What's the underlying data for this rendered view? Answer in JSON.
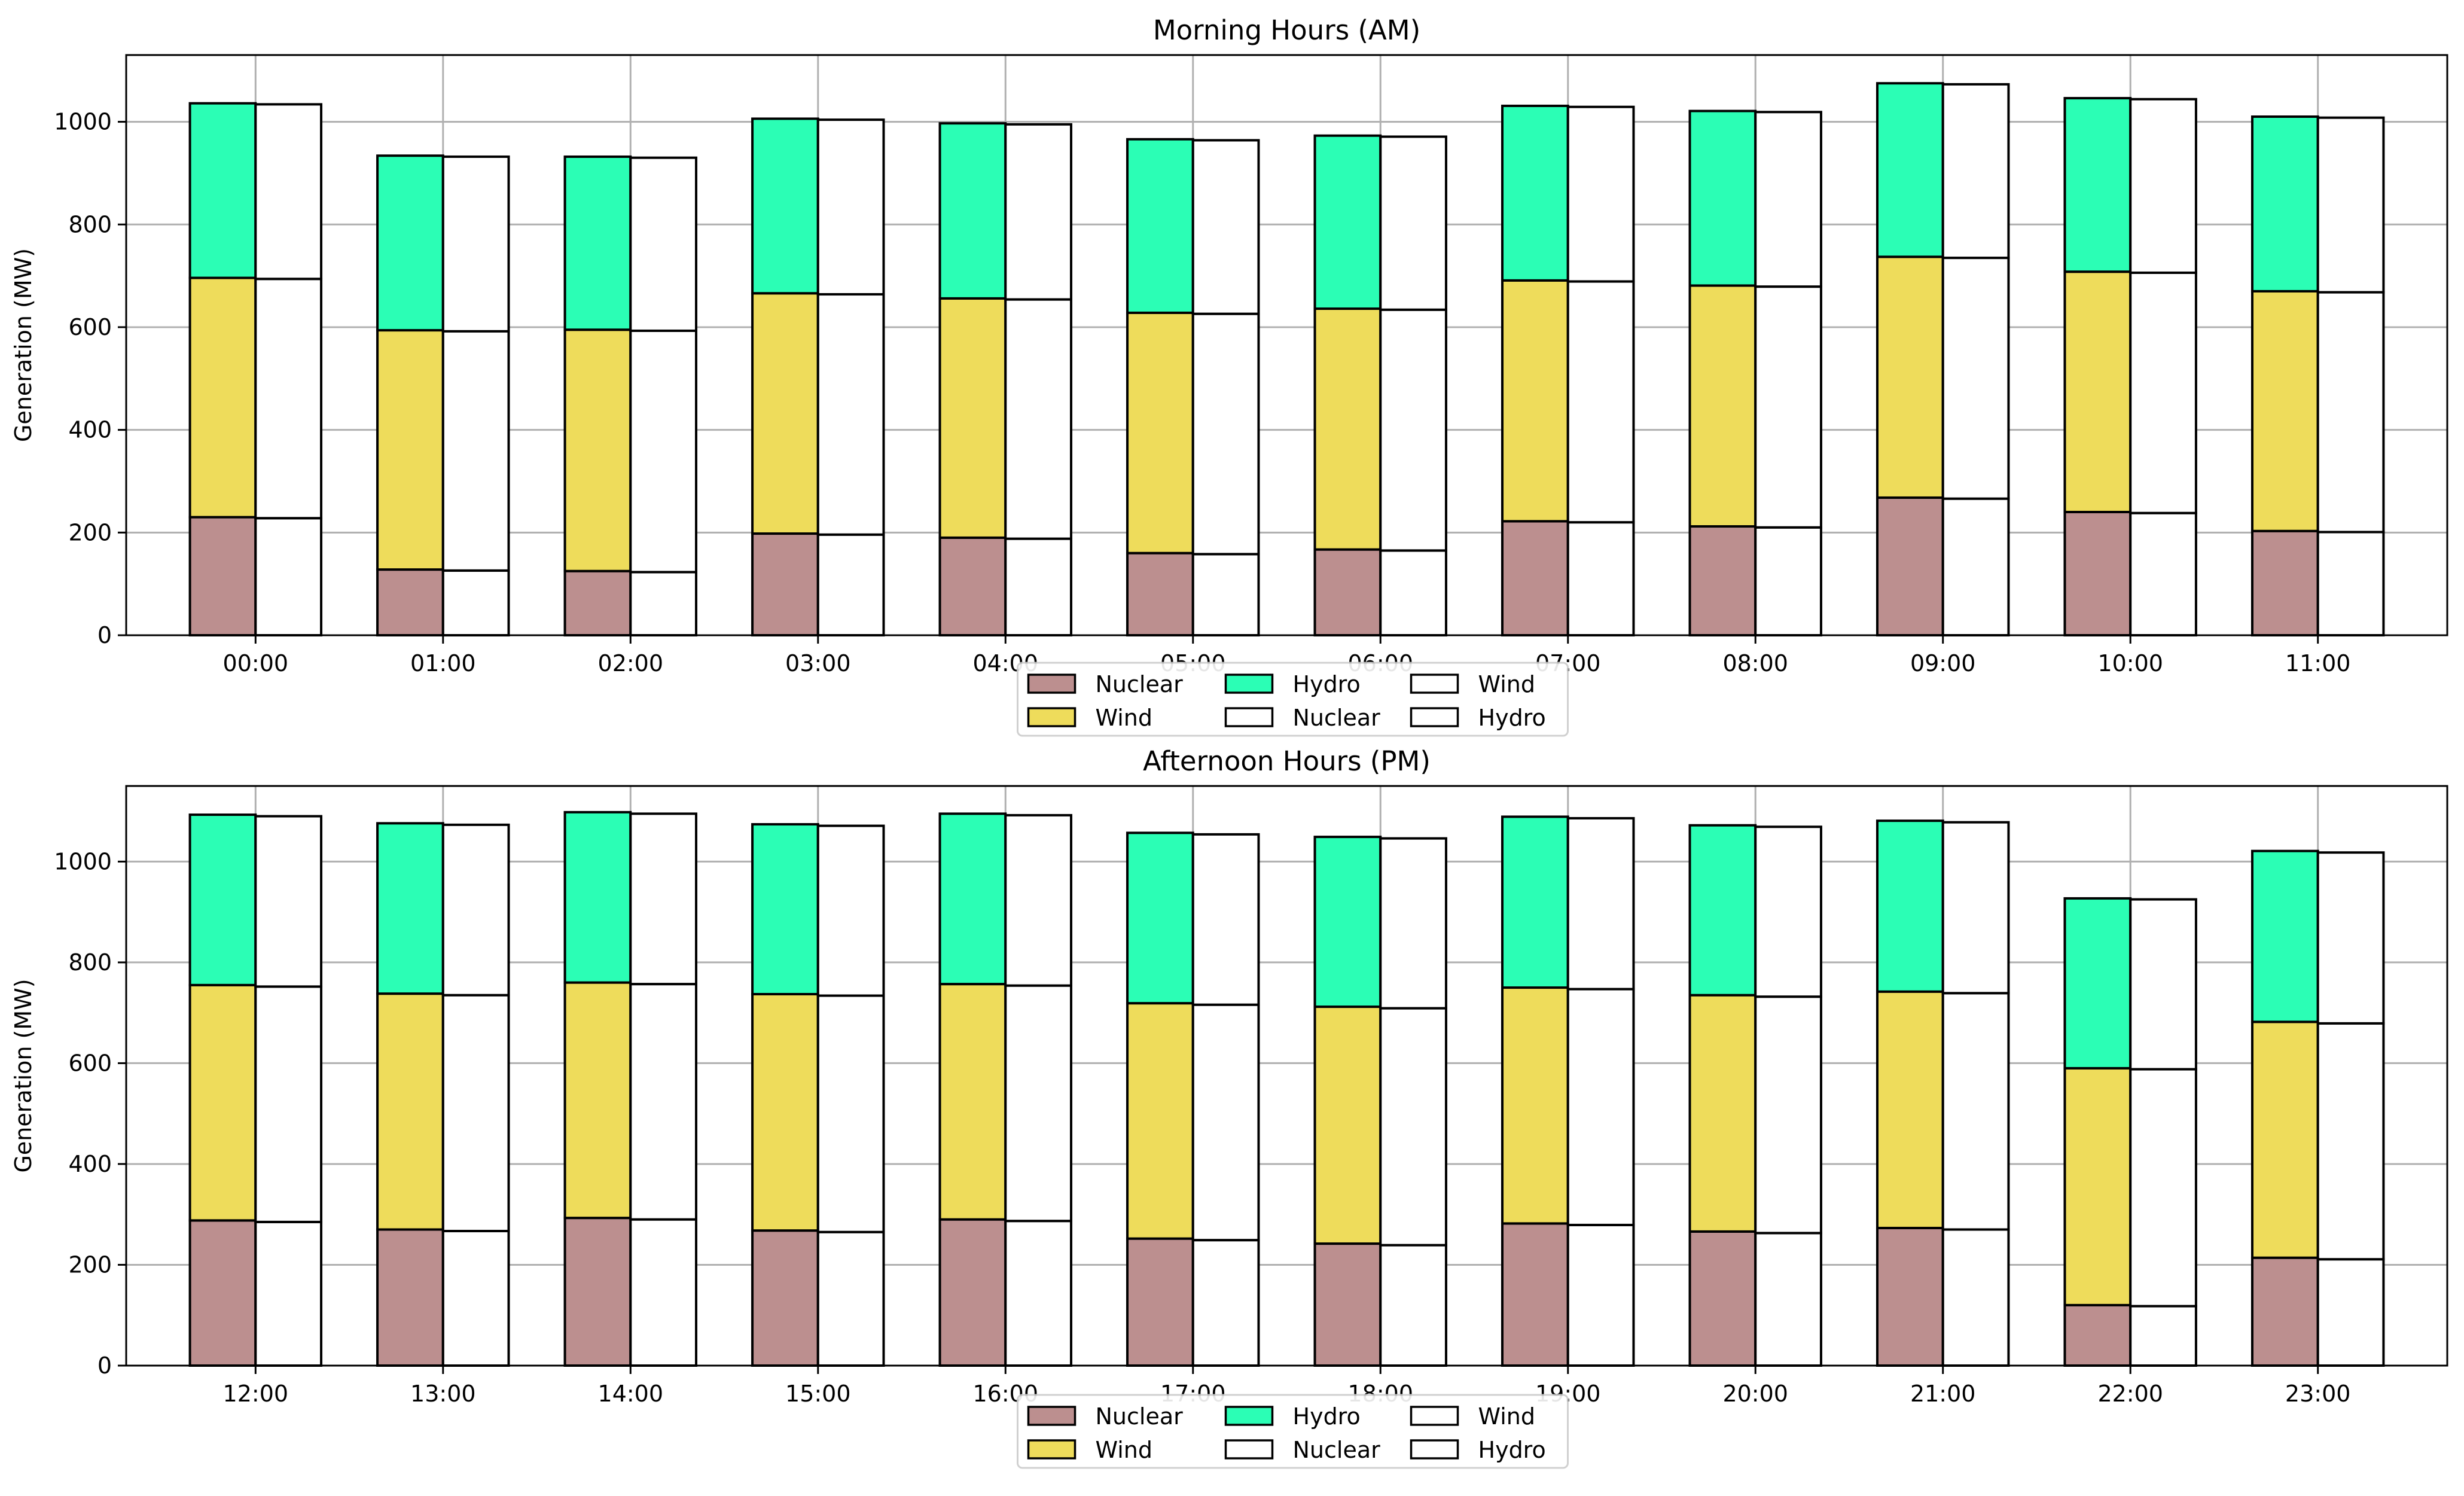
{
  "chart_data": [
    {
      "type": "bar",
      "title": "Morning Hours (AM)",
      "xlabel": "",
      "ylabel": "Generation (MW)",
      "ylim": [
        0,
        1130
      ],
      "yticks": [
        0,
        200,
        400,
        600,
        800,
        1000
      ],
      "grid": true,
      "categories": [
        "00:00",
        "01:00",
        "02:00",
        "03:00",
        "04:00",
        "05:00",
        "06:00",
        "07:00",
        "08:00",
        "09:00",
        "10:00",
        "11:00"
      ],
      "stacks": [
        {
          "name": "filled",
          "series": [
            {
              "name": "Nuclear",
              "color": "#bc8f8f",
              "values": [
                230,
                128,
                125,
                198,
                190,
                160,
                167,
                222,
                212,
                268,
                240,
                203
              ]
            },
            {
              "name": "Wind",
              "color": "#eedc5b",
              "values": [
                466,
                466,
                470,
                468,
                466,
                468,
                469,
                469,
                469,
                469,
                468,
                467
              ]
            },
            {
              "name": "Hydro",
              "color": "#2bfeb5",
              "values": [
                340,
                340,
                337,
                340,
                341,
                338,
                337,
                340,
                340,
                338,
                338,
                340
              ]
            }
          ]
        },
        {
          "name": "outline",
          "series": [
            {
              "name": "Nuclear",
              "color": "#ffffff",
              "values": [
                228,
                126,
                123,
                196,
                188,
                158,
                165,
                220,
                210,
                266,
                238,
                201
              ]
            },
            {
              "name": "Wind",
              "color": "#ffffff",
              "values": [
                466,
                466,
                470,
                468,
                466,
                468,
                469,
                469,
                469,
                469,
                468,
                467
              ]
            },
            {
              "name": "Hydro",
              "color": "#ffffff",
              "values": [
                340,
                340,
                337,
                340,
                341,
                338,
                337,
                340,
                340,
                338,
                338,
                340
              ]
            }
          ]
        }
      ],
      "legend": {
        "placement": "bottom-center",
        "entries": [
          {
            "label": "Nuclear",
            "color": "#bc8f8f"
          },
          {
            "label": "Wind",
            "color": "#eedc5b"
          },
          {
            "label": "Hydro",
            "color": "#2bfeb5"
          },
          {
            "label": "Nuclear",
            "color": "#ffffff"
          },
          {
            "label": "Wind",
            "color": "#ffffff"
          },
          {
            "label": "Hydro",
            "color": "#ffffff"
          }
        ]
      }
    },
    {
      "type": "bar",
      "title": "Afternoon Hours (PM)",
      "xlabel": "",
      "ylabel": "Generation (MW)",
      "ylim": [
        0,
        1150
      ],
      "yticks": [
        0,
        200,
        400,
        600,
        800,
        1000
      ],
      "grid": true,
      "categories": [
        "12:00",
        "13:00",
        "14:00",
        "15:00",
        "16:00",
        "17:00",
        "18:00",
        "19:00",
        "20:00",
        "21:00",
        "22:00",
        "23:00"
      ],
      "stacks": [
        {
          "name": "filled",
          "series": [
            {
              "name": "Nuclear",
              "color": "#bc8f8f",
              "values": [
                288,
                270,
                293,
                268,
                290,
                252,
                242,
                282,
                266,
                273,
                120,
                214
              ]
            },
            {
              "name": "Wind",
              "color": "#eedc5b",
              "values": [
                467,
                468,
                467,
                469,
                467,
                467,
                470,
                468,
                469,
                469,
                470,
                468
              ]
            },
            {
              "name": "Hydro",
              "color": "#2bfeb5",
              "values": [
                338,
                338,
                338,
                337,
                338,
                338,
                337,
                339,
                337,
                339,
                337,
                339
              ]
            }
          ]
        },
        {
          "name": "outline",
          "series": [
            {
              "name": "Nuclear",
              "color": "#ffffff",
              "values": [
                285,
                267,
                290,
                265,
                287,
                249,
                239,
                279,
                263,
                270,
                118,
                211
              ]
            },
            {
              "name": "Wind",
              "color": "#ffffff",
              "values": [
                467,
                468,
                467,
                469,
                467,
                467,
                470,
                468,
                469,
                469,
                470,
                468
              ]
            },
            {
              "name": "Hydro",
              "color": "#ffffff",
              "values": [
                338,
                338,
                338,
                337,
                338,
                338,
                337,
                339,
                337,
                339,
                337,
                339
              ]
            }
          ]
        }
      ],
      "legend": {
        "placement": "bottom-center",
        "entries": [
          {
            "label": "Nuclear",
            "color": "#bc8f8f"
          },
          {
            "label": "Wind",
            "color": "#eedc5b"
          },
          {
            "label": "Hydro",
            "color": "#2bfeb5"
          },
          {
            "label": "Nuclear",
            "color": "#ffffff"
          },
          {
            "label": "Wind",
            "color": "#ffffff"
          },
          {
            "label": "Hydro",
            "color": "#ffffff"
          }
        ]
      }
    }
  ],
  "colors": {
    "grid": "#b0b0b0",
    "axis": "#000000",
    "bar_edge": "#000000"
  }
}
